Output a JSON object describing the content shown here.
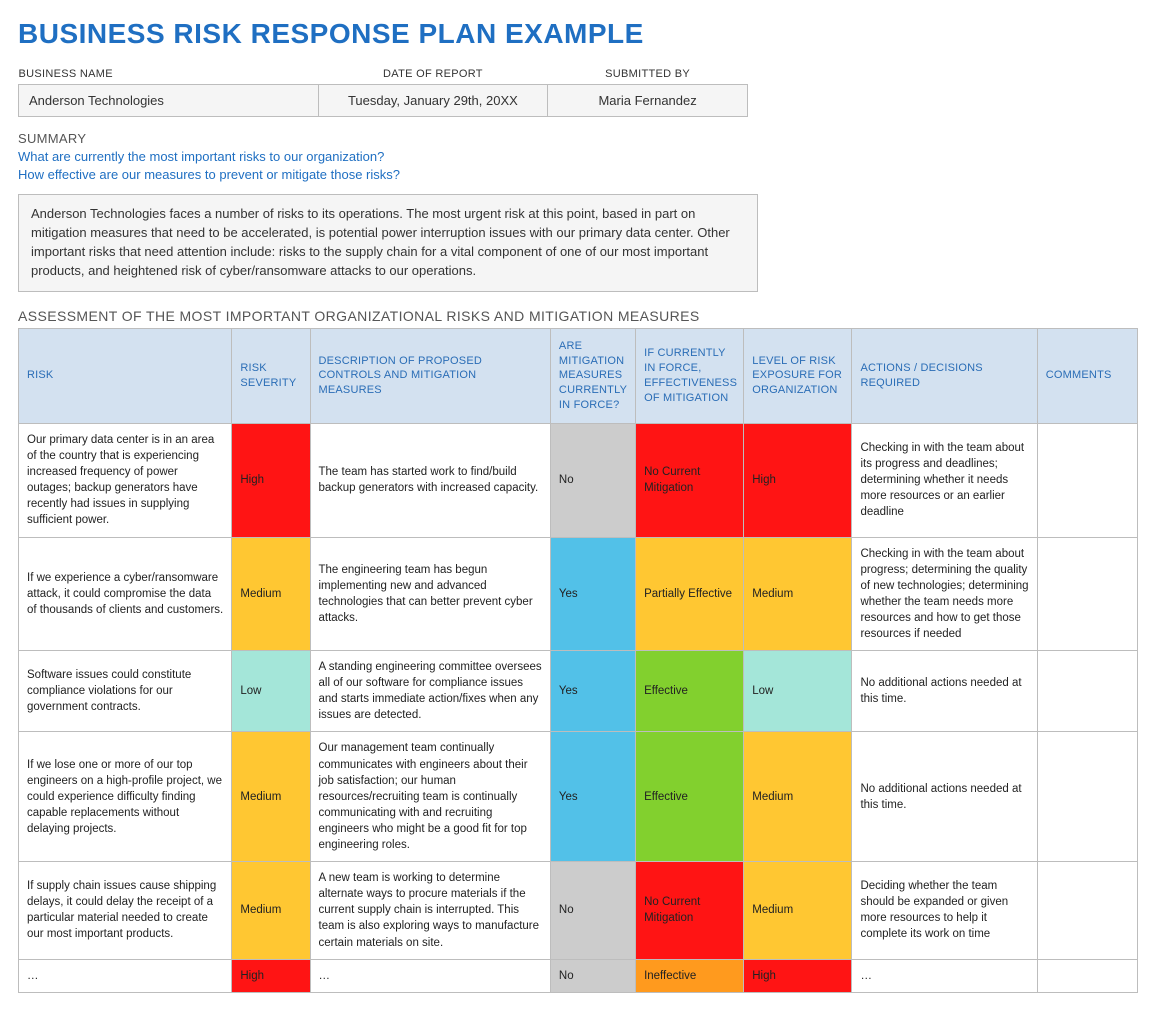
{
  "title": "BUSINESS RISK RESPONSE PLAN EXAMPLE",
  "colors": {
    "title": "#1f6fc2",
    "header_bg": "#d3e1f0",
    "header_text": "#2a6db6",
    "meta_bg": "#f5f5f5",
    "border": "#bdbdbd",
    "High": "#ff1414",
    "Medium": "#ffc732",
    "Low": "#a4e6d9",
    "Yes": "#52c1e8",
    "No": "#cccccc",
    "Effective": "#82d02e",
    "Partially Effective": "#ffc732",
    "Ineffective": "#ff9a1e",
    "No Current Mitigation": "#ff1414"
  },
  "meta": {
    "headers": {
      "business": "BUSINESS NAME",
      "date": "DATE OF REPORT",
      "submitted": "SUBMITTED BY"
    },
    "business": "Anderson Technologies",
    "date": "Tuesday, January 29th, 20XX",
    "submitted": "Maria Fernandez"
  },
  "summary": {
    "label": "SUMMARY",
    "q1": "What are currently the most important risks to our organization?",
    "q2": "How effective are our measures to prevent or mitigate those risks?",
    "text": "Anderson Technologies faces a number of risks to its operations. The most urgent risk at this point, based in part on mitigation measures that need to be accelerated, is potential power interruption issues with our primary data center. Other important risks that need attention include: risks to the supply chain for a vital component of one of our most important products, and heightened risk of cyber/ransomware attacks to our operations."
  },
  "assessment": {
    "label": "ASSESSMENT OF THE MOST IMPORTANT ORGANIZATIONAL RISKS AND MITIGATION MEASURES",
    "columns": {
      "risk": "RISK",
      "severity": "RISK SEVERITY",
      "description": "DESCRIPTION OF PROPOSED CONTROLS AND MITIGATION MEASURES",
      "inforce": "ARE MITIGATION MEASURES CURRENTLY IN FORCE?",
      "effectiveness": "IF CURRENTLY IN FORCE, EFFECTIVENESS OF MITIGATION",
      "level": "LEVEL OF RISK EXPOSURE FOR ORGANIZATION",
      "actions": "ACTIONS / DECISIONS REQUIRED",
      "comments": "COMMENTS"
    },
    "rows": [
      {
        "risk": "Our primary data center is in an area of the country that is experiencing increased frequency of power outages; backup generators have recently had issues in supplying sufficient power.",
        "severity": "High",
        "description": "The team has started work to find/build backup generators with increased capacity.",
        "inforce": "No",
        "effectiveness": "No Current Mitigation",
        "level": "High",
        "actions": "Checking in with the team about its progress and deadlines; determining whether it needs more resources or an earlier deadline",
        "comments": ""
      },
      {
        "risk": "If we experience a cyber/ransomware attack, it could compromise the data of thousands of clients and customers.",
        "severity": "Medium",
        "description": "The engineering team has begun implementing new and advanced technologies that can better prevent cyber attacks.",
        "inforce": "Yes",
        "effectiveness": "Partially Effective",
        "level": "Medium",
        "actions": "Checking in with the team about progress; determining the quality of new technologies; determining whether the team needs more resources and how to get those resources if needed",
        "comments": ""
      },
      {
        "risk": "Software issues could constitute compliance violations for our government contracts.",
        "severity": "Low",
        "description": "A standing engineering committee oversees all of our software for compliance issues and starts immediate action/fixes when any issues are detected.",
        "inforce": "Yes",
        "effectiveness": "Effective",
        "level": "Low",
        "actions": "No additional actions needed at this time.",
        "comments": ""
      },
      {
        "risk": "If we lose one or more of our top engineers on a high-profile project, we could experience difficulty finding capable replacements without delaying projects.",
        "severity": "Medium",
        "description": "Our management team continually communicates with engineers about their job satisfaction; our human resources/recruiting team is continually communicating with and recruiting engineers who might be a good fit for top engineering roles.",
        "inforce": "Yes",
        "effectiveness": "Effective",
        "level": "Medium",
        "actions": "No additional actions needed at this time.",
        "comments": ""
      },
      {
        "risk": "If supply chain issues cause shipping delays, it could delay the receipt of a particular material needed to create our most important products.",
        "severity": "Medium",
        "description": "A new team is working to determine alternate ways to procure materials if the current supply chain is interrupted. This team is also exploring ways to manufacture certain materials on site.",
        "inforce": "No",
        "effectiveness": "No Current Mitigation",
        "level": "Medium",
        "actions": "Deciding whether the team should be expanded or given more resources to help it complete its work on time",
        "comments": ""
      },
      {
        "risk": "…",
        "severity": "High",
        "description": "…",
        "inforce": "No",
        "effectiveness": "Ineffective",
        "level": "High",
        "actions": "…",
        "comments": ""
      }
    ]
  }
}
